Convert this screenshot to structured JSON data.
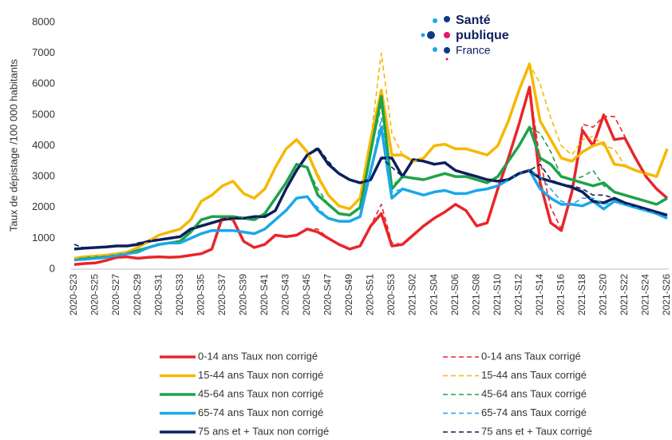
{
  "chart_data": {
    "type": "line",
    "y_label": "Taux de dépistage /100 000 habitants",
    "categories": [
      "2020-S23",
      null,
      "2020-S25",
      null,
      "2020-S27",
      null,
      "2020-S29",
      null,
      "2020-S31",
      null,
      "2020-S33",
      null,
      "2020-S35",
      null,
      "2020-S37",
      null,
      "2020-S39",
      null,
      "2020-S41",
      null,
      "2020-S43",
      null,
      "2020-S45",
      null,
      "2020-S47",
      null,
      "2020-S49",
      null,
      "2020-S51",
      null,
      "2020-S53",
      null,
      "2021-S02",
      null,
      "2021-S04",
      null,
      "2021-S06",
      null,
      "2021-S08",
      null,
      "2021-S10",
      null,
      "2021-S12",
      null,
      "2021-S14",
      null,
      "2021-S16",
      null,
      "2021-S18",
      null,
      "2021-S20",
      null,
      "2021-S22",
      null,
      "2021-S24",
      null,
      "2021-S26"
    ],
    "ylim": [
      0,
      8000
    ],
    "yticks": [
      0,
      1000,
      2000,
      3000,
      4000,
      5000,
      6000,
      7000,
      8000
    ],
    "grid": false,
    "series": [
      {
        "name": "0-14 ans Taux non corrigé",
        "color": "#e8262a",
        "dashed": false,
        "values": [
          150,
          180,
          200,
          280,
          380,
          400,
          350,
          380,
          400,
          380,
          400,
          450,
          500,
          650,
          1700,
          1600,
          900,
          700,
          800,
          1100,
          1050,
          1100,
          1300,
          1200,
          1000,
          800,
          650,
          750,
          1400,
          1800,
          750,
          800,
          1100,
          1400,
          1650,
          1850,
          2100,
          1900,
          1400,
          1500,
          2600,
          3600,
          4700,
          5900,
          2800,
          1500,
          1250,
          2500,
          4500,
          4000,
          5000,
          4200,
          4250,
          3600,
          3000,
          2600,
          2300
        ]
      },
      {
        "name": "15-44 ans Taux non corrigé",
        "color": "#f5b800",
        "dashed": false,
        "values": [
          350,
          400,
          420,
          450,
          500,
          550,
          700,
          900,
          1100,
          1200,
          1300,
          1600,
          2200,
          2400,
          2700,
          2850,
          2450,
          2300,
          2600,
          3300,
          3900,
          4200,
          3800,
          3000,
          2400,
          2050,
          1950,
          2300,
          4200,
          5800,
          3700,
          3700,
          3500,
          3600,
          4000,
          4050,
          3900,
          3900,
          3800,
          3700,
          4000,
          4800,
          5800,
          6650,
          4800,
          4200,
          3600,
          3500,
          3800,
          4000,
          4100,
          3400,
          3350,
          3200,
          3100,
          3000,
          3900
        ]
      },
      {
        "name": "45-64 ans Taux non corrigé",
        "color": "#1ea34a",
        "dashed": false,
        "values": [
          300,
          350,
          380,
          400,
          450,
          500,
          600,
          700,
          800,
          850,
          900,
          1200,
          1600,
          1700,
          1700,
          1700,
          1650,
          1600,
          1800,
          2300,
          2800,
          3400,
          3300,
          2400,
          2100,
          1800,
          1750,
          2000,
          3800,
          5600,
          2600,
          3000,
          2950,
          2900,
          3000,
          3100,
          3000,
          3000,
          2900,
          2800,
          3000,
          3500,
          4000,
          4600,
          3600,
          3400,
          3000,
          2900,
          2800,
          2700,
          2800,
          2500,
          2400,
          2300,
          2200,
          2100,
          2300
        ]
      },
      {
        "name": "65-74 ans Taux non corrigé",
        "color": "#1ba8e8",
        "dashed": false,
        "values": [
          300,
          320,
          350,
          380,
          450,
          500,
          550,
          700,
          800,
          850,
          850,
          1000,
          1150,
          1250,
          1250,
          1250,
          1200,
          1150,
          1300,
          1600,
          1900,
          2300,
          2350,
          1900,
          1650,
          1550,
          1550,
          1700,
          3200,
          4600,
          2300,
          2600,
          2500,
          2400,
          2500,
          2550,
          2450,
          2450,
          2550,
          2600,
          2700,
          2900,
          3100,
          3200,
          2600,
          2300,
          2100,
          2100,
          2050,
          2200,
          1950,
          2200,
          2100,
          2000,
          1900,
          1800,
          1650
        ]
      },
      {
        "name": "75 ans et + Taux non corrigé",
        "color": "#0d1f5c",
        "dashed": false,
        "values": [
          650,
          680,
          700,
          720,
          750,
          750,
          800,
          900,
          950,
          1000,
          1050,
          1300,
          1400,
          1500,
          1600,
          1650,
          1650,
          1700,
          1700,
          1900,
          2600,
          3200,
          3700,
          3900,
          3400,
          3100,
          2900,
          2800,
          2900,
          3600,
          3600,
          3000,
          3550,
          3500,
          3400,
          3450,
          3200,
          3100,
          3000,
          2900,
          2850,
          2900,
          3100,
          3200,
          2950,
          2850,
          2750,
          2650,
          2500,
          2200,
          2150,
          2300,
          2150,
          2050,
          1950,
          1850,
          1750
        ]
      },
      {
        "name": "0-14 ans Taux corrigé",
        "color": "#e8262a",
        "dashed": true,
        "values": [
          150,
          180,
          200,
          280,
          380,
          400,
          350,
          380,
          400,
          380,
          400,
          450,
          500,
          650,
          1700,
          1600,
          900,
          700,
          800,
          1100,
          1050,
          1100,
          1300,
          1300,
          1000,
          800,
          650,
          750,
          1400,
          2100,
          850,
          800,
          1100,
          1400,
          1650,
          1850,
          2100,
          1900,
          1400,
          1500,
          2600,
          3600,
          4700,
          5900,
          3500,
          2000,
          1300,
          2500,
          4700,
          4600,
          4950,
          4950,
          4300,
          3600,
          3000,
          2600,
          2300
        ]
      },
      {
        "name": "15-44 ans Taux corrigé",
        "color": "#f5b800",
        "dashed": true,
        "values": [
          350,
          400,
          420,
          450,
          500,
          550,
          700,
          900,
          1100,
          1200,
          1300,
          1600,
          2200,
          2400,
          2700,
          2850,
          2450,
          2300,
          2600,
          3300,
          3900,
          4200,
          3800,
          3100,
          2400,
          2050,
          1950,
          2300,
          4200,
          7000,
          4400,
          3700,
          3500,
          3600,
          4000,
          4050,
          3900,
          3900,
          3800,
          3700,
          4000,
          4800,
          5800,
          6650,
          6000,
          4900,
          4000,
          3700,
          4200,
          4300,
          4000,
          3900,
          3350,
          3200,
          3100,
          3000,
          3900
        ]
      },
      {
        "name": "45-64 ans Taux corrigé",
        "color": "#1ea34a",
        "dashed": true,
        "values": [
          300,
          350,
          380,
          400,
          450,
          500,
          600,
          700,
          800,
          850,
          900,
          1200,
          1600,
          1700,
          1700,
          1700,
          1650,
          1600,
          1800,
          2300,
          2800,
          3400,
          3300,
          2600,
          2100,
          1800,
          1750,
          2000,
          3800,
          5300,
          2700,
          3000,
          2950,
          2900,
          3000,
          3100,
          3000,
          3000,
          2900,
          2800,
          3000,
          3500,
          4000,
          4600,
          4400,
          3800,
          3000,
          2900,
          3000,
          3200,
          2700,
          2500,
          2400,
          2300,
          2200,
          2100,
          2300
        ]
      },
      {
        "name": "65-74 ans Taux corrigé",
        "color": "#1ba8e8",
        "dashed": true,
        "values": [
          300,
          320,
          350,
          380,
          450,
          500,
          550,
          700,
          800,
          850,
          850,
          1000,
          1150,
          1250,
          1250,
          1250,
          1200,
          1150,
          1300,
          1600,
          1900,
          2300,
          2350,
          2000,
          1650,
          1550,
          1550,
          1700,
          3200,
          4900,
          2500,
          2600,
          2500,
          2400,
          2500,
          2550,
          2450,
          2450,
          2550,
          2600,
          2700,
          2900,
          3100,
          3200,
          3000,
          2600,
          2200,
          2100,
          2300,
          2300,
          2100,
          2200,
          2100,
          2000,
          1900,
          1800,
          1650
        ]
      },
      {
        "name": "75 ans et + Taux corrigé",
        "color": "#0d1f5c",
        "dashed": true,
        "values": [
          800,
          680,
          700,
          720,
          750,
          750,
          850,
          900,
          950,
          1000,
          1050,
          1300,
          1400,
          1500,
          1600,
          1650,
          1650,
          1700,
          1700,
          1900,
          2600,
          3200,
          3700,
          3950,
          3500,
          3100,
          2900,
          2800,
          2900,
          3600,
          3300,
          3000,
          3550,
          3500,
          3400,
          3450,
          3200,
          3100,
          3000,
          2900,
          2850,
          2900,
          3100,
          3200,
          3400,
          2900,
          2750,
          2700,
          2600,
          2400,
          2400,
          2300,
          2150,
          2050,
          1950,
          1850,
          1750
        ]
      }
    ]
  },
  "logo": {
    "line1": "Santé",
    "line2": "publique",
    "line3": "France"
  }
}
